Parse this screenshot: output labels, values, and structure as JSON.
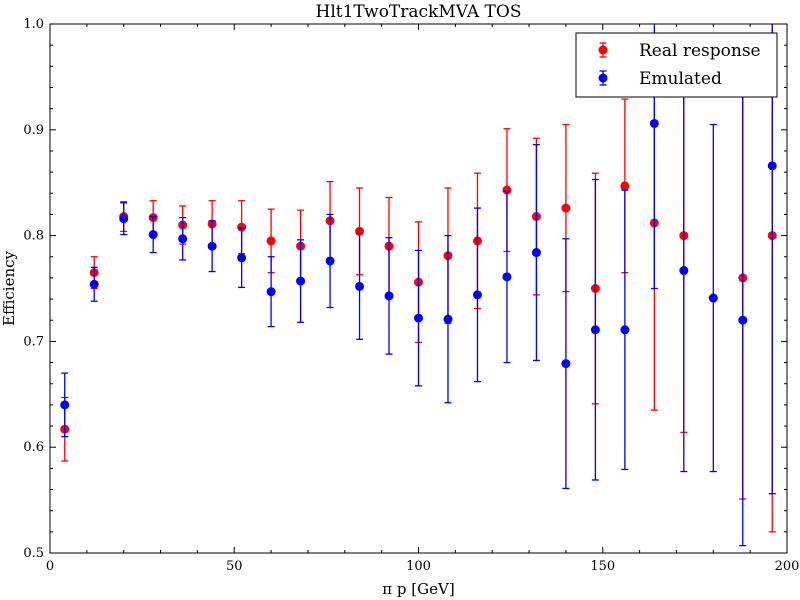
{
  "chart_data": {
    "type": "scatter",
    "title": "Hlt1TwoTrackMVA TOS",
    "xlabel": "π p [GeV]",
    "ylabel": "Efficiency",
    "xlim": [
      0,
      200
    ],
    "ylim": [
      0.5,
      1.0
    ],
    "xticks": [
      0,
      50,
      100,
      150,
      200
    ],
    "yticks": [
      0.5,
      0.6,
      0.7,
      0.8,
      0.9,
      1.0
    ],
    "xtick_labels": [
      "0",
      "50",
      "100",
      "150",
      "200"
    ],
    "ytick_labels": [
      "0.5",
      "0.6",
      "0.7",
      "0.8",
      "0.9",
      "1.0"
    ],
    "legend_position": "top-right",
    "series": [
      {
        "name": "Real response",
        "color": "#ff0000",
        "x": [
          4,
          12,
          20,
          28,
          36,
          44,
          52,
          60,
          68,
          76,
          84,
          92,
          100,
          108,
          116,
          124,
          132,
          140,
          148,
          156,
          164,
          172,
          180,
          188,
          196
        ],
        "y": [
          0.617,
          0.765,
          0.818,
          0.817,
          0.81,
          0.811,
          0.808,
          0.795,
          0.79,
          0.814,
          0.804,
          0.79,
          0.756,
          0.781,
          0.795,
          0.843,
          0.818,
          0.826,
          0.75,
          0.847,
          0.812,
          0.8,
          null,
          0.76,
          0.8
        ],
        "err": [
          0.03,
          0.015,
          0.014,
          0.016,
          0.018,
          0.022,
          0.025,
          0.03,
          0.034,
          0.037,
          0.041,
          0.046,
          0.057,
          0.064,
          0.064,
          0.058,
          0.074,
          0.079,
          0.109,
          0.082,
          0.177,
          0.186,
          null,
          0.209,
          0.28
        ]
      },
      {
        "name": "Emulated",
        "color": "#0000ff",
        "x": [
          4,
          12,
          20,
          28,
          36,
          44,
          52,
          60,
          68,
          76,
          84,
          92,
          100,
          108,
          116,
          124,
          132,
          140,
          148,
          156,
          164,
          172,
          180,
          188,
          196
        ],
        "y": [
          0.64,
          0.754,
          0.816,
          0.801,
          0.797,
          0.79,
          0.779,
          0.747,
          0.757,
          0.776,
          0.752,
          0.743,
          0.722,
          0.721,
          0.744,
          0.761,
          0.784,
          0.679,
          0.711,
          0.711,
          0.906,
          0.767,
          0.741,
          0.72,
          0.866
        ],
        "err": [
          0.03,
          0.016,
          0.015,
          0.017,
          0.02,
          0.024,
          0.028,
          0.033,
          0.039,
          0.044,
          0.05,
          0.055,
          0.064,
          0.079,
          0.082,
          0.081,
          0.102,
          0.118,
          0.142,
          0.132,
          0.156,
          0.19,
          0.164,
          0.213,
          0.31
        ]
      }
    ]
  }
}
